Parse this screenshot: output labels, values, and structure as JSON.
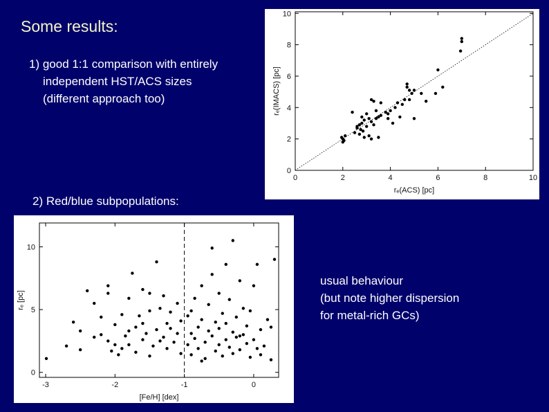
{
  "slide": {
    "title": "Some results:",
    "point_1": [
      "1) good 1:1 comparison with entirely",
      "independent HST/ACS sizes",
      "(different approach too)"
    ],
    "point_2": "2) Red/blue subpopulations:",
    "note": [
      "usual behaviour",
      "(but note higher dispersion",
      "for metal-rich GCs)"
    ]
  },
  "chart_data": [
    {
      "type": "scatter",
      "x_label": "rₑ(ACS) [pc]",
      "y_label": "rₑ(IMACS) [pc]",
      "xlim": [
        0,
        10
      ],
      "ylim": [
        0,
        10.1
      ],
      "xticks": [
        0,
        2,
        4,
        6,
        8,
        10
      ],
      "yticks": [
        0,
        2,
        4,
        6,
        8,
        10
      ],
      "diagonal": true,
      "series": [
        {
          "color": "#000000",
          "x": [
            2,
            2,
            1.95,
            2.05,
            2.1,
            2.5,
            2.6,
            2.7,
            2.8,
            2.75,
            2.9,
            2.7,
            2.6,
            2.85,
            3,
            2.9,
            3.1,
            3.2,
            2.8,
            3,
            3.1,
            3.2,
            3.3,
            3.4,
            3.5,
            3.6,
            3.3,
            3.6,
            3.8,
            3.9,
            4,
            4.2,
            4.3,
            4.5,
            4.4,
            3.9,
            4.1,
            4.6,
            4.7,
            4.7,
            4.8,
            4.9,
            5,
            4.8,
            5.3,
            5.5,
            5,
            6,
            5.9,
            6.2,
            7,
            7,
            6.95,
            3.5,
            2.4,
            3.2,
            3.4
          ],
          "values": [
            1.8,
            2,
            2.1,
            1.9,
            2.2,
            2.4,
            2.7,
            2.9,
            3,
            2.6,
            3.2,
            2.3,
            2.8,
            2.5,
            2.8,
            2.1,
            2.2,
            2,
            3.4,
            3.6,
            3.3,
            3.1,
            2.9,
            3.3,
            3.4,
            3.5,
            4.4,
            4.3,
            3.7,
            3.6,
            3.8,
            4,
            4.3,
            4.2,
            3.4,
            3.3,
            3,
            4.5,
            5.5,
            5.3,
            5.1,
            4.9,
            5.1,
            4.5,
            4.9,
            4.4,
            3.3,
            6.4,
            4.9,
            5.3,
            8.4,
            8.2,
            7.6,
            2.1,
            3.7,
            4.5,
            3.8
          ]
        }
      ]
    },
    {
      "type": "scatter",
      "x_label": "[Fe/H] [dex]",
      "y_label": "rₑ [pc]",
      "xlim": [
        -3.09,
        0.36
      ],
      "ylim": [
        -0.4,
        11.9
      ],
      "xticks": [
        -3,
        -2,
        -1,
        0
      ],
      "yticks": [
        0,
        5,
        10
      ],
      "vline": -1,
      "series": [
        {
          "color": "#000000",
          "x": [
            -2.99,
            -2.6,
            -2.5,
            -2.3,
            -2.4,
            -2.3,
            -2.1,
            -2.2,
            -2.1,
            -2.05,
            -2,
            -2,
            -1.95,
            -1.9,
            -1.85,
            -1.8,
            -1.8,
            -1.75,
            -1.7,
            -1.7,
            -1.65,
            -1.6,
            -1.6,
            -1.55,
            -1.5,
            -1.5,
            -1.45,
            -1.4,
            -1.4,
            -1.35,
            -1.3,
            -1.3,
            -1.25,
            -1.2,
            -1.2,
            -1.15,
            -1.1,
            -1.1,
            -1.05,
            -1.05,
            -1.8,
            -2.5,
            -2.2,
            -1.9,
            -1.6,
            -1.35,
            -2.7,
            -2.1,
            -1.5,
            -1.25,
            -0.95,
            -0.95,
            -0.9,
            -0.9,
            -0.85,
            -0.85,
            -0.8,
            -0.8,
            -0.75,
            -0.75,
            -0.7,
            -0.7,
            -0.65,
            -0.65,
            -0.6,
            -0.6,
            -0.55,
            -0.55,
            -0.5,
            -0.5,
            -0.5,
            -0.45,
            -0.45,
            -0.4,
            -0.4,
            -0.4,
            -0.35,
            -0.35,
            -0.3,
            -0.3,
            -0.3,
            -0.25,
            -0.25,
            -0.2,
            -0.2,
            -0.15,
            -0.15,
            -0.1,
            -0.1,
            -0.05,
            -0.05,
            0,
            0,
            0.05,
            0.05,
            0.1,
            0.1,
            0.15,
            0.2,
            0.25,
            0.3,
            0.25,
            -0.6,
            -0.75,
            -0.9,
            -0.2
          ],
          "values": [
            1.1,
            4,
            3.3,
            2.8,
            6.5,
            5.5,
            6.3,
            3,
            2.5,
            1.7,
            3.8,
            2.2,
            1.4,
            4.6,
            2.9,
            3.3,
            5.9,
            7.9,
            1.6,
            3.6,
            4.5,
            2.6,
            6.6,
            3.1,
            1.3,
            4.9,
            2.1,
            3.4,
            8.8,
            5.1,
            2.8,
            6.1,
            1.9,
            3.5,
            4.8,
            2.4,
            3.1,
            5.5,
            1.5,
            4.1,
            2.2,
            1.8,
            4.4,
            1.9,
            3.9,
            2.5,
            2.1,
            6.9,
            6.3,
            3.9,
            2.2,
            4.5,
            3.1,
            1.4,
            5.9,
            2.7,
            3.6,
            1.9,
            4.2,
            6.9,
            2.4,
            1.1,
            3.3,
            5.4,
            2.9,
            7.8,
            1.7,
            4,
            3.5,
            2.2,
            6.3,
            1.3,
            4.7,
            2.6,
            8.6,
            3.9,
            2,
            5.8,
            3.2,
            1.5,
            10.5,
            2.8,
            4.4,
            1.8,
            7.3,
            3,
            5.1,
            2.3,
            3.7,
            1.2,
            4.9,
            2.6,
            6.9,
            1.9,
            8.6,
            3.4,
            1.4,
            2.1,
            4.2,
            3.6,
            9,
            1,
            9.9,
            0.9,
            4.9,
            2.9
          ]
        }
      ]
    }
  ]
}
